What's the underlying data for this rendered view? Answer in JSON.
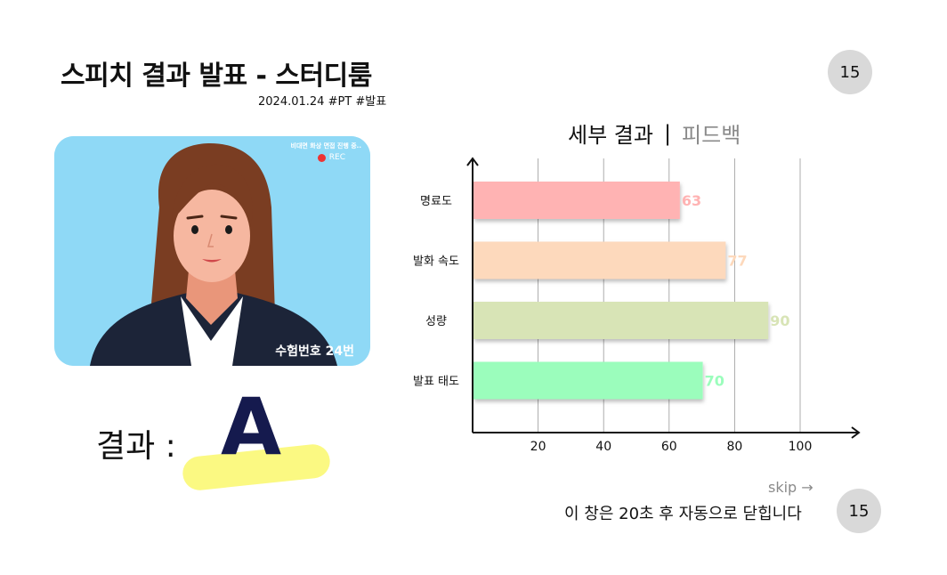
{
  "header": {
    "title": "스피치 결과 발표  - 스터디룸",
    "subtitle": "2024.01.24 #PT #발표",
    "countdown": "15"
  },
  "photo": {
    "caption": "비대면 화상 면접 진행 중..",
    "rec_label": "REC",
    "candidate_label": "수험번호 24번"
  },
  "result": {
    "label": "결과 :",
    "grade": "A",
    "highlight_color": "#fbf982"
  },
  "tabs": {
    "detail": "세부 결과",
    "divider": "|",
    "feedback": "피드백"
  },
  "chart_data": {
    "type": "bar",
    "orientation": "horizontal",
    "categories": [
      "명료도",
      "발화 속도",
      "성량",
      "발표 태도"
    ],
    "values": [
      63,
      77,
      90,
      70
    ],
    "colors": [
      "#ffb3b3",
      "#fdd9bc",
      "#d8e4b6",
      "#9bfdbc"
    ],
    "xticks": [
      20,
      40,
      60,
      80,
      100
    ],
    "xlim": [
      0,
      115
    ],
    "grid": true,
    "title": "",
    "xlabel": "",
    "ylabel": ""
  },
  "footer": {
    "skip_label": "skip →",
    "close_notice": "이 창은 20초 후 자동으로 닫힙니다",
    "countdown": "15"
  }
}
